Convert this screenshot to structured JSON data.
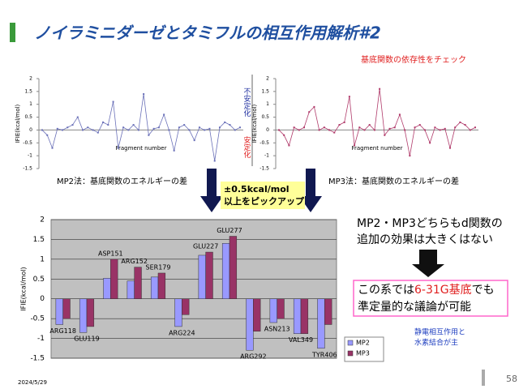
{
  "slide": {
    "title": "ノイラミニダーゼとタミフルの相互作用解析#2",
    "subtitle": "基底関数の依存性をチェック",
    "caption_left": "MP2法：基底関数のエネルギーの差",
    "caption_right": "MP3法：基底関数のエネルギーの差",
    "unstable": "不安定化",
    "stable": "安定化",
    "pickup": [
      "±0.5kcal/mol",
      "以上をピックアップ"
    ],
    "note": [
      "MP2・MP3どちらもd関数の",
      "追加の効果は大きくはない"
    ],
    "conclusion": [
      "この系では",
      "6-31G基底",
      "でも",
      "準定量的な議論が可能"
    ],
    "remark": [
      "静電相互作用と",
      "水素結合が主"
    ],
    "date": "2024/5/29",
    "page": "58"
  },
  "chart_data": [
    {
      "type": "line",
      "xlabel": "Fragment number",
      "ylabel": "IFIE(kcal/mol)",
      "color": "#6a70b8",
      "ylim": [
        -1.5,
        2
      ],
      "yticks": [
        -1.5,
        -1,
        -0.5,
        0,
        0.5,
        1,
        1.5,
        2
      ],
      "values": [
        0,
        -0.2,
        -0.7,
        0.05,
        0,
        0.1,
        0.2,
        0.5,
        0,
        0.1,
        0,
        -0.1,
        0.3,
        0.2,
        1.1,
        -0.7,
        0.1,
        0,
        0.2,
        0,
        1.4,
        -0.2,
        0.05,
        0.1,
        0.6,
        0,
        -0.8,
        0.1,
        0.2,
        0,
        -0.4,
        0.1,
        0,
        0.05,
        -1.2,
        0.1,
        0.3,
        0.2,
        0,
        0.1
      ]
    },
    {
      "type": "line",
      "xlabel": "Fragment number",
      "ylabel": "IFIE(kcal/mol)",
      "color": "#b03a6a",
      "ylim": [
        -1.5,
        2
      ],
      "yticks": [
        -1.5,
        -1,
        -0.5,
        0,
        0.5,
        1,
        1.5,
        2
      ],
      "values": [
        0,
        -0.2,
        -0.6,
        0.1,
        0,
        0.1,
        0.7,
        0.9,
        0,
        0.1,
        0,
        -0.1,
        0.2,
        0.3,
        1.3,
        -0.6,
        0.1,
        0,
        0.2,
        0,
        1.6,
        -0.2,
        0.05,
        0.1,
        0.6,
        0,
        -1.0,
        0.1,
        0.2,
        0,
        -0.5,
        0.1,
        0,
        0.05,
        -0.7,
        0.1,
        0.3,
        0.2,
        0,
        0.1
      ]
    },
    {
      "type": "bar",
      "ylabel": "IFIE(kcal/mol)",
      "ylim": [
        -1.5,
        2
      ],
      "yticks": [
        -1.5,
        -1,
        -0.5,
        0,
        0.5,
        1,
        1.5,
        2
      ],
      "categories": [
        "ARG118",
        "GLU119",
        "ASP151",
        "ARG152",
        "SER179",
        "ARG224",
        "GLU227",
        "GLU277",
        "ARG292",
        "ASN213",
        "VAL349",
        "TYR406"
      ],
      "series": [
        {
          "name": "MP2",
          "color": "#9999ff",
          "values": [
            -0.65,
            -0.85,
            0.52,
            0.45,
            0.55,
            -0.7,
            1.1,
            1.4,
            -1.3,
            -0.6,
            -0.88,
            -1.25
          ]
        },
        {
          "name": "MP3",
          "color": "#993366",
          "values": [
            -0.5,
            -0.7,
            1.0,
            0.8,
            0.65,
            -0.4,
            1.18,
            1.58,
            -0.82,
            -0.5,
            -0.88,
            -0.65
          ]
        }
      ]
    }
  ]
}
